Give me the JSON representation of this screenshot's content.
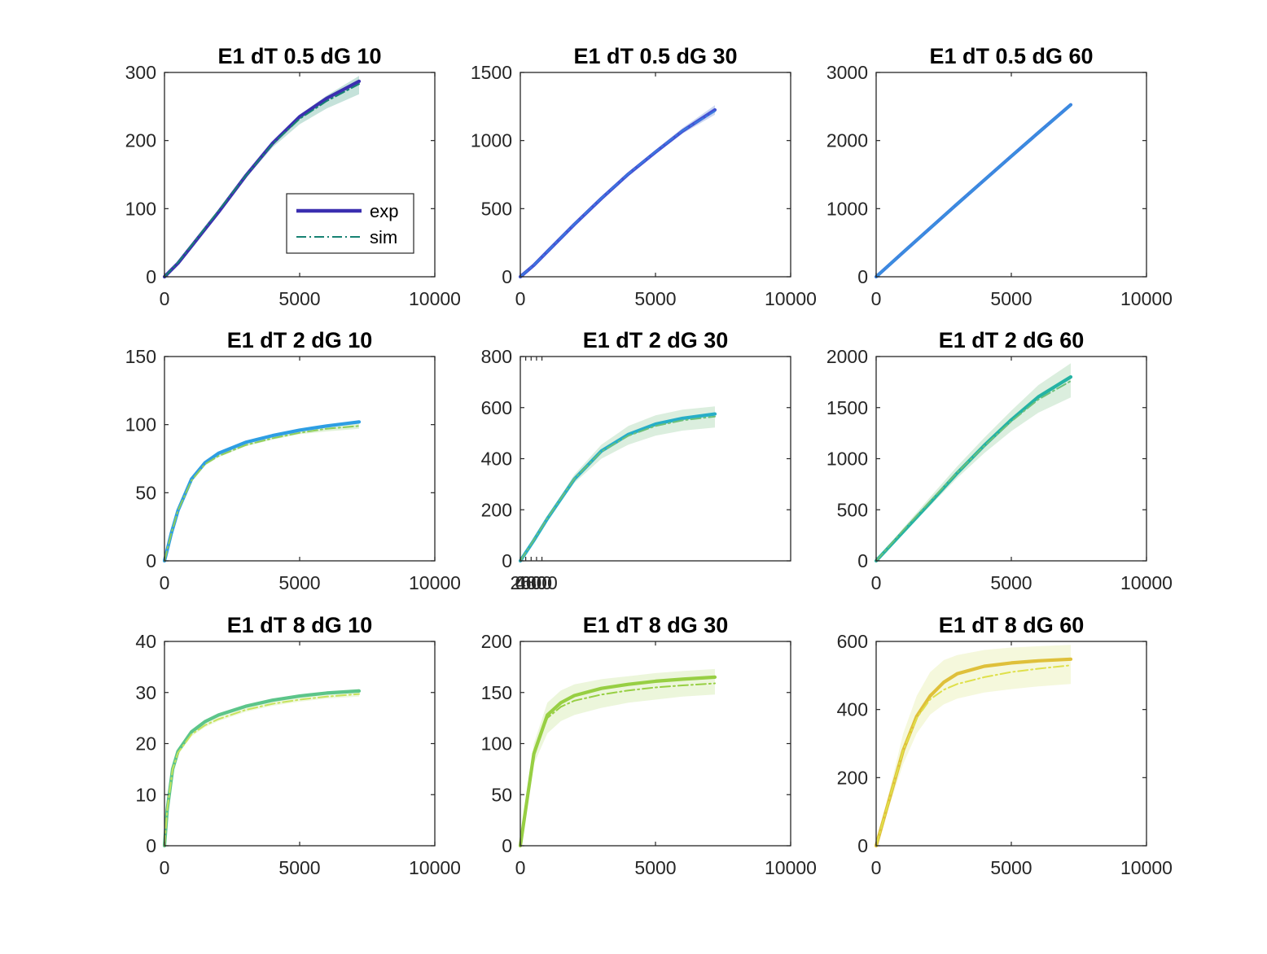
{
  "figure": {
    "legend": {
      "entries": [
        "exp",
        "sim"
      ]
    },
    "colors": {
      "axis": "#262626",
      "legend_exp": "#3b2fb0",
      "legend_sim": "#178273"
    }
  },
  "chart_data": [
    {
      "type": "line",
      "title": "E1 dT 0.5 dG 10",
      "x": [
        0,
        500,
        1000,
        2000,
        3000,
        4000,
        5000,
        6000,
        7200
      ],
      "series": [
        {
          "name": "exp",
          "values": [
            0,
            20,
            45,
            95,
            148,
            196,
            235,
            262,
            287
          ]
        },
        {
          "name": "sim",
          "values": [
            0,
            21,
            46,
            97,
            148,
            195,
            232,
            258,
            283
          ]
        }
      ],
      "band": {
        "lower": [
          0,
          20,
          44,
          94,
          145,
          190,
          224,
          247,
          268
        ],
        "upper": [
          0,
          22,
          47,
          99,
          151,
          199,
          238,
          266,
          295
        ]
      },
      "xlim": [
        0,
        10000
      ],
      "ylim": [
        0,
        300
      ],
      "xticks": [
        0,
        5000,
        10000
      ],
      "yticks": [
        0,
        100,
        200,
        300
      ],
      "colors": {
        "exp": "#3b2fb0",
        "sim": "#178273",
        "band": "#b2d8cd"
      },
      "legend": true,
      "grid": false
    },
    {
      "type": "line",
      "title": "E1 dT 0.5 dG 30",
      "x": [
        0,
        500,
        1000,
        2000,
        3000,
        4000,
        5000,
        6000,
        7200
      ],
      "series": [
        {
          "name": "exp",
          "values": [
            0,
            85,
            185,
            385,
            575,
            755,
            915,
            1070,
            1225
          ]
        },
        {
          "name": "sim",
          "values": [
            0,
            86,
            186,
            387,
            577,
            757,
            918,
            1073,
            1215
          ]
        }
      ],
      "band": {
        "lower": [
          0,
          84,
          183,
          382,
          569,
          746,
          902,
          1050,
          1190
        ],
        "upper": [
          0,
          88,
          189,
          392,
          585,
          768,
          932,
          1092,
          1260
        ]
      },
      "xlim": [
        0,
        10000
      ],
      "ylim": [
        0,
        1500
      ],
      "xticks": [
        0,
        5000,
        10000
      ],
      "yticks": [
        0,
        500,
        1000,
        1500
      ],
      "colors": {
        "exp": "#4452d4",
        "sim": "#3a79df",
        "band": "#b8c8ec"
      },
      "legend": false,
      "grid": false
    },
    {
      "type": "line",
      "title": "E1 dT 0.5 dG 60",
      "x": [
        0,
        1000,
        2000,
        3000,
        4000,
        5000,
        6000,
        7200
      ],
      "series": [
        {
          "name": "exp",
          "values": [
            0,
            360,
            715,
            1070,
            1420,
            1770,
            2115,
            2525
          ]
        },
        {
          "name": "sim",
          "values": [
            0,
            360,
            715,
            1070,
            1420,
            1770,
            2115,
            2520
          ]
        }
      ],
      "band": {
        "lower": [
          0,
          358,
          712,
          1065,
          1413,
          1760,
          2102,
          2505
        ],
        "upper": [
          0,
          362,
          718,
          1075,
          1427,
          1780,
          2128,
          2545
        ]
      },
      "xlim": [
        0,
        10000
      ],
      "ylim": [
        0,
        3000
      ],
      "xticks": [
        0,
        5000,
        10000
      ],
      "yticks": [
        0,
        1000,
        2000,
        3000
      ],
      "colors": {
        "exp": "#3d82e0",
        "sim": "#3a90de",
        "band": "#c3d7ef"
      },
      "legend": false,
      "grid": false
    },
    {
      "type": "line",
      "title": "E1 dT 2 dG 10",
      "x": [
        0,
        250,
        500,
        1000,
        1500,
        2000,
        3000,
        4000,
        5000,
        6000,
        7200
      ],
      "series": [
        {
          "name": "exp",
          "values": [
            0,
            20,
            37,
            60,
            72,
            79,
            87,
            92,
            96,
            99,
            102
          ]
        },
        {
          "name": "sim",
          "values": [
            0,
            20,
            37,
            59,
            71,
            77,
            85,
            90,
            94,
            97,
            99
          ]
        }
      ],
      "band": {
        "lower": [
          0,
          19,
          36,
          58,
          70,
          76,
          84,
          89,
          93,
          95,
          97
        ],
        "upper": [
          0,
          21,
          38,
          61,
          73,
          80,
          88,
          93,
          97,
          100,
          103
        ]
      },
      "xlim": [
        0,
        10000
      ],
      "ylim": [
        0,
        150
      ],
      "xticks": [
        0,
        5000,
        10000
      ],
      "yticks": [
        0,
        50,
        100,
        150
      ],
      "colors": {
        "exp": "#2e9ee3",
        "sim": "#8fce5a",
        "band": "#d7eec9"
      },
      "legend": false,
      "grid": false
    },
    {
      "type": "line",
      "title": "E1 dT 2 dG 30",
      "x": [
        0,
        500,
        1000,
        2000,
        3000,
        4000,
        5000,
        6000,
        7200
      ],
      "series": [
        {
          "name": "exp",
          "values": [
            0,
            80,
            165,
            320,
            430,
            495,
            535,
            558,
            575
          ]
        },
        {
          "name": "sim",
          "values": [
            0,
            82,
            167,
            322,
            428,
            490,
            528,
            550,
            565
          ]
        }
      ],
      "band": {
        "lower": [
          0,
          78,
          160,
          305,
          400,
          455,
          490,
          510,
          522
        ],
        "upper": [
          0,
          86,
          173,
          338,
          455,
          528,
          570,
          592,
          605
        ]
      },
      "xlim": [
        0,
        10000
      ],
      "ylim": [
        0,
        800
      ],
      "xticks": [
        0,
        200,
        400,
        600,
        800
      ],
      "yticks": [
        0,
        200,
        400,
        600,
        800
      ],
      "colors": {
        "exp": "#27aec7",
        "sim": "#6cc07a",
        "band": "#cfe8d3"
      },
      "legend": false,
      "grid": false
    },
    {
      "type": "line",
      "title": "E1 dT 2 dG 60",
      "x": [
        0,
        1000,
        2000,
        3000,
        4000,
        5000,
        6000,
        7200
      ],
      "series": [
        {
          "name": "exp",
          "values": [
            0,
            285,
            570,
            860,
            1130,
            1380,
            1605,
            1800
          ]
        },
        {
          "name": "sim",
          "values": [
            0,
            300,
            585,
            865,
            1125,
            1365,
            1580,
            1760
          ]
        }
      ],
      "band": {
        "lower": [
          0,
          270,
          540,
          810,
          1055,
          1270,
          1450,
          1600
        ],
        "upper": [
          0,
          320,
          625,
          925,
          1205,
          1470,
          1720,
          1935
        ]
      },
      "xlim": [
        0,
        10000
      ],
      "ylim": [
        0,
        2000
      ],
      "xticks": [
        0,
        5000,
        10000
      ],
      "yticks": [
        0,
        500,
        1000,
        1500,
        2000
      ],
      "colors": {
        "exp": "#25b3a4",
        "sim": "#6cc07a",
        "band": "#cfe8d3"
      },
      "legend": false,
      "grid": false
    },
    {
      "type": "line",
      "title": "E1 dT 8 dG 10",
      "x": [
        0,
        100,
        300,
        500,
        1000,
        1500,
        2000,
        3000,
        4000,
        5000,
        6000,
        7200
      ],
      "series": [
        {
          "name": "exp",
          "values": [
            0,
            7,
            15,
            18.5,
            22.3,
            24.3,
            25.6,
            27.3,
            28.5,
            29.3,
            29.9,
            30.3
          ]
        },
        {
          "name": "sim",
          "values": [
            0,
            7,
            15,
            18.2,
            21.8,
            23.6,
            24.8,
            26.6,
            27.8,
            28.6,
            29.2,
            29.7
          ]
        }
      ],
      "band": {
        "lower": [
          0,
          6.8,
          14.6,
          17.8,
          21.4,
          23.2,
          24.4,
          26.2,
          27.4,
          28.2,
          28.8,
          29.2
        ],
        "upper": [
          0,
          7.2,
          15.4,
          18.8,
          22.6,
          24.6,
          25.9,
          27.6,
          28.8,
          29.6,
          30.2,
          30.7
        ]
      },
      "xlim": [
        0,
        10000
      ],
      "ylim": [
        0,
        40
      ],
      "xticks": [
        0,
        5000,
        10000
      ],
      "yticks": [
        0,
        10,
        20,
        30,
        40
      ],
      "colors": {
        "exp": "#5cc58a",
        "sim": "#c6e35d",
        "band": "#eaf5d3"
      },
      "legend": false,
      "grid": false
    },
    {
      "type": "line",
      "title": "E1 dT 8 dG 30",
      "x": [
        0,
        250,
        500,
        1000,
        1500,
        2000,
        3000,
        4000,
        5000,
        6000,
        7200
      ],
      "series": [
        {
          "name": "exp",
          "values": [
            0,
            45,
            90,
            128,
            140,
            147,
            154,
            158,
            161,
            163,
            165
          ]
        },
        {
          "name": "sim",
          "values": [
            0,
            45,
            90,
            125,
            136,
            142,
            148,
            152,
            155,
            157,
            159
          ]
        }
      ],
      "band": {
        "lower": [
          0,
          40,
          80,
          110,
          122,
          128,
          135,
          140,
          143,
          146,
          148
        ],
        "upper": [
          0,
          50,
          100,
          140,
          152,
          158,
          163,
          166,
          169,
          171,
          173
        ]
      },
      "xlim": [
        0,
        10000
      ],
      "ylim": [
        0,
        200
      ],
      "xticks": [
        0,
        5000,
        10000
      ],
      "yticks": [
        0,
        50,
        100,
        150,
        200
      ],
      "colors": {
        "exp": "#97cf43",
        "sim": "#97cf43",
        "band": "#e5f3cf"
      },
      "legend": false,
      "grid": false
    },
    {
      "type": "line",
      "title": "E1 dT 8 dG 60",
      "x": [
        0,
        500,
        1000,
        1500,
        2000,
        2500,
        3000,
        4000,
        5000,
        6000,
        7200
      ],
      "series": [
        {
          "name": "exp",
          "values": [
            0,
            140,
            280,
            380,
            440,
            480,
            505,
            527,
            537,
            543,
            548
          ]
        },
        {
          "name": "sim",
          "values": [
            0,
            140,
            280,
            375,
            430,
            458,
            475,
            495,
            510,
            520,
            530
          ]
        }
      ],
      "band": {
        "lower": [
          0,
          120,
          240,
          330,
          385,
          415,
          432,
          450,
          460,
          468,
          475
        ],
        "upper": [
          0,
          165,
          330,
          440,
          510,
          545,
          560,
          575,
          582,
          586,
          590
        ]
      },
      "xlim": [
        0,
        10000
      ],
      "ylim": [
        0,
        600
      ],
      "xticks": [
        0,
        5000,
        10000
      ],
      "yticks": [
        0,
        200,
        400,
        600
      ],
      "colors": {
        "exp": "#dfc03a",
        "sim": "#dfe04b",
        "band": "#f1f6d0"
      },
      "legend": false,
      "grid": false
    }
  ]
}
